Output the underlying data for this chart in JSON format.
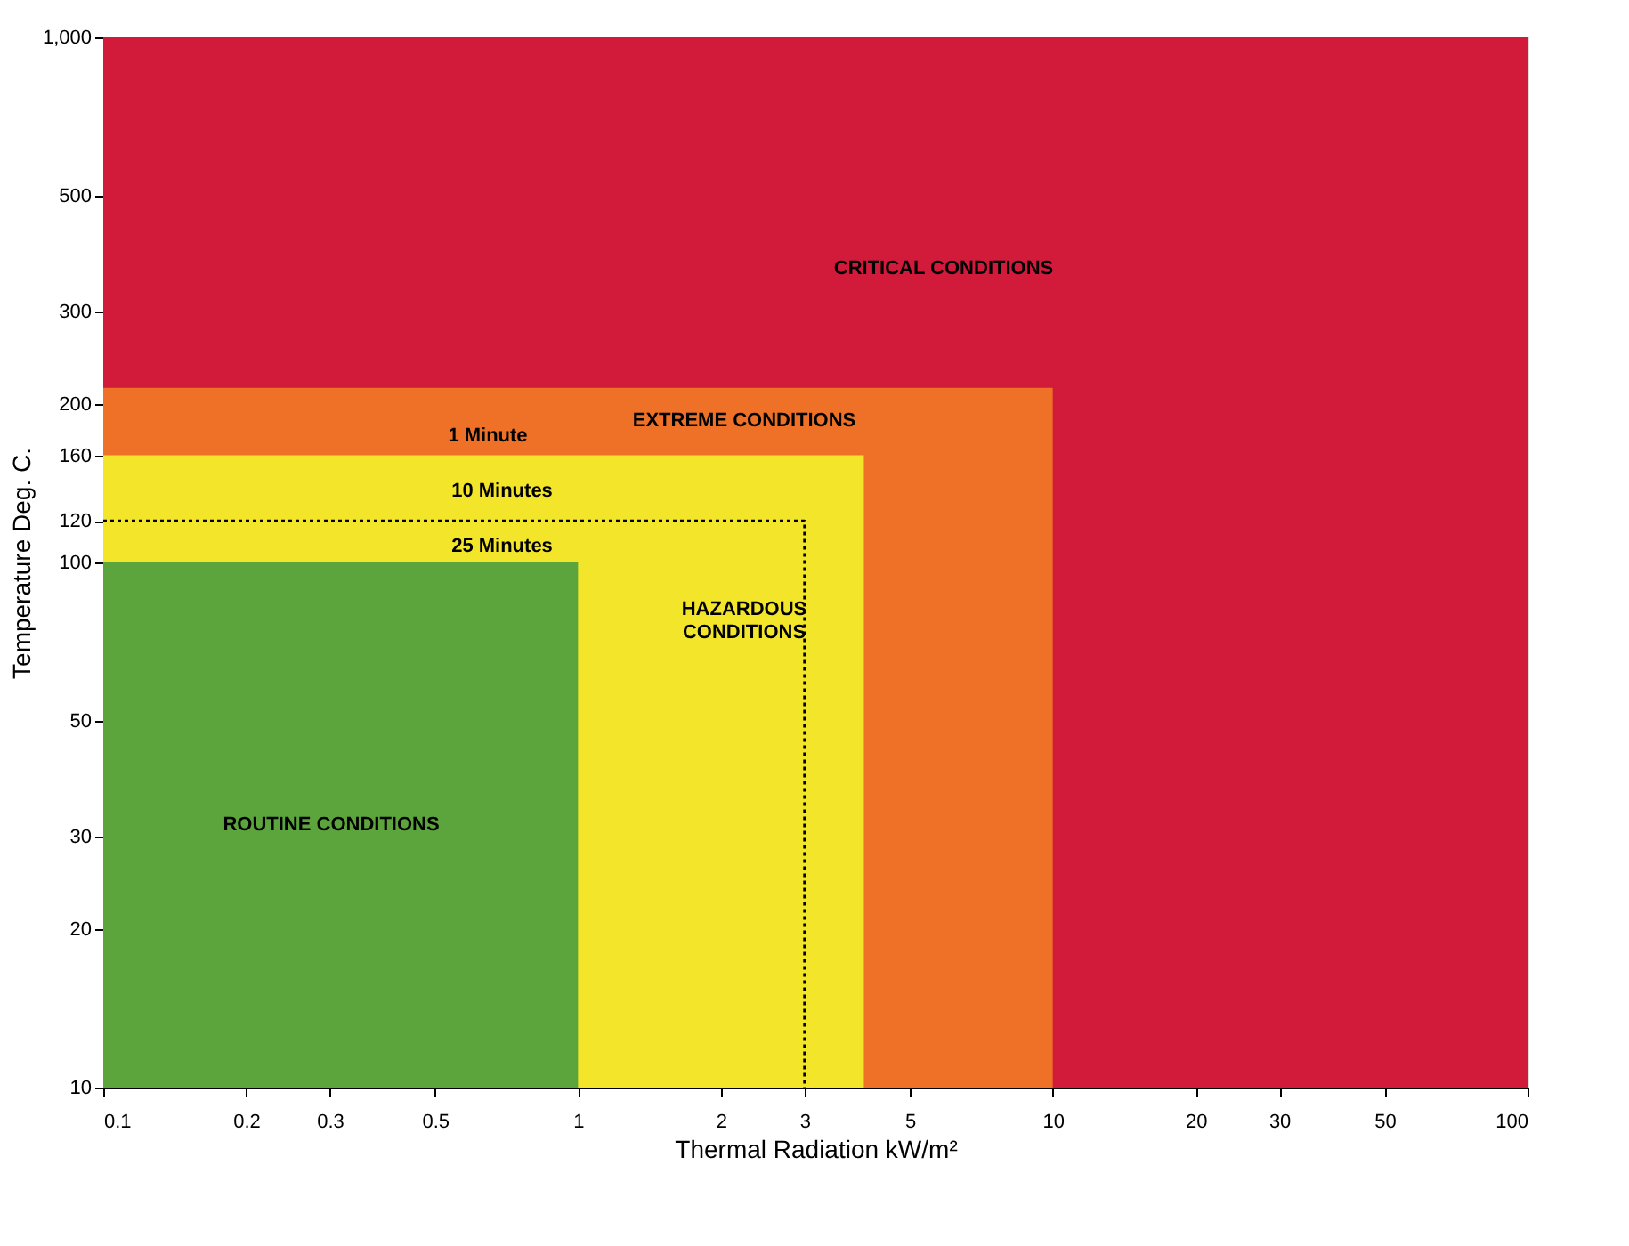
{
  "chart_data": {
    "type": "area",
    "log": "xy",
    "xlabel": "Thermal Radiation kW/m²",
    "ylabel": "Temperature Deg. C.",
    "xlim": [
      0.1,
      100
    ],
    "ylim": [
      10,
      1000
    ],
    "xticks": [
      0.1,
      0.2,
      0.3,
      0.5,
      1,
      2,
      3,
      5,
      10,
      20,
      30,
      50,
      100
    ],
    "yticks": [
      10,
      20,
      30,
      50,
      100,
      120,
      160,
      200,
      300,
      500,
      {
        "value": 1000,
        "label": "1,000"
      }
    ],
    "series": [
      {
        "color": "#ee7127",
        "x": [
          0.1,
          10
        ],
        "values": [
          215,
          215
        ]
      },
      {
        "color": "#f3e52a",
        "x": [
          0.1,
          4
        ],
        "values": [
          160,
          160
        ]
      },
      {
        "color": "#5ca53c",
        "x": [
          0.1,
          1
        ],
        "values": [
          100,
          100
        ]
      },
      {
        "type": "line",
        "color": "#000000",
        "line_style": "dotted",
        "x": [
          0.1,
          3,
          3
        ],
        "values": [
          120,
          120,
          10
        ]
      }
    ],
    "bands": [
      {
        "axis": "y",
        "from": 10,
        "to": 1000,
        "color": "#d21a3a"
      }
    ],
    "annotations": [
      "CRITICAL CONDITIONS",
      "EXTREME CONDITIONS",
      "1 Minute",
      "10 Minutes",
      "25 Minutes",
      "HAZARDOUS\nCONDITIONS",
      "ROUTINE CONDITIONS"
    ]
  }
}
